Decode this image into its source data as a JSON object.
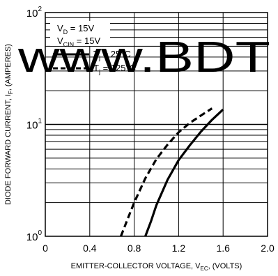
{
  "chart_data": {
    "type": "line",
    "title": "",
    "xlabel": "EMITTER-COLLECTOR VOLTAGE, V",
    "xlabel_sub": "EC",
    "xlabel_suffix": ", (VOLTS)",
    "ylabel": "DIODE FORWARD CURRENT, I",
    "ylabel_sub": "F",
    "ylabel_suffix": ", (AMPERES)",
    "xlim": [
      0,
      2.0
    ],
    "x_ticks": [
      0,
      0.4,
      0.8,
      1.2,
      1.6,
      2.0
    ],
    "x_tick_labels": [
      "0",
      "0.4",
      "0.8",
      "1.2",
      "1.6",
      "2.0"
    ],
    "y_scale": "log",
    "ylim": [
      1,
      100
    ],
    "y_ticks": [
      1,
      10,
      100
    ],
    "y_tick_labels": [
      {
        "base": "10",
        "exp": "0"
      },
      {
        "base": "10",
        "exp": "1"
      },
      {
        "base": "10",
        "exp": "2"
      }
    ],
    "grid": true,
    "conditions": [
      {
        "main": "V",
        "sub": "D",
        "rest": " = 15V"
      },
      {
        "main": "V",
        "sub": "CIN",
        "rest": " = 15V"
      }
    ],
    "series": [
      {
        "name_main": "T",
        "name_sub": "j",
        "name_rest": " = 25°C",
        "style": "solid",
        "x": [
          0.9,
          0.95,
          1.0,
          1.1,
          1.2,
          1.3,
          1.4,
          1.5,
          1.6
        ],
        "y": [
          1.0,
          1.35,
          1.9,
          3.2,
          4.8,
          6.5,
          8.6,
          11.0,
          13.6
        ]
      },
      {
        "name_main": "T",
        "name_sub": "j",
        "name_rest": " = 125°C",
        "style": "dashed",
        "x": [
          0.68,
          0.75,
          0.8,
          0.9,
          1.0,
          1.1,
          1.2,
          1.3,
          1.4,
          1.5
        ],
        "y": [
          1.0,
          1.5,
          2.0,
          3.3,
          4.9,
          6.6,
          8.5,
          10.3,
          12.0,
          13.9
        ]
      }
    ],
    "watermark": "www.BDT"
  }
}
